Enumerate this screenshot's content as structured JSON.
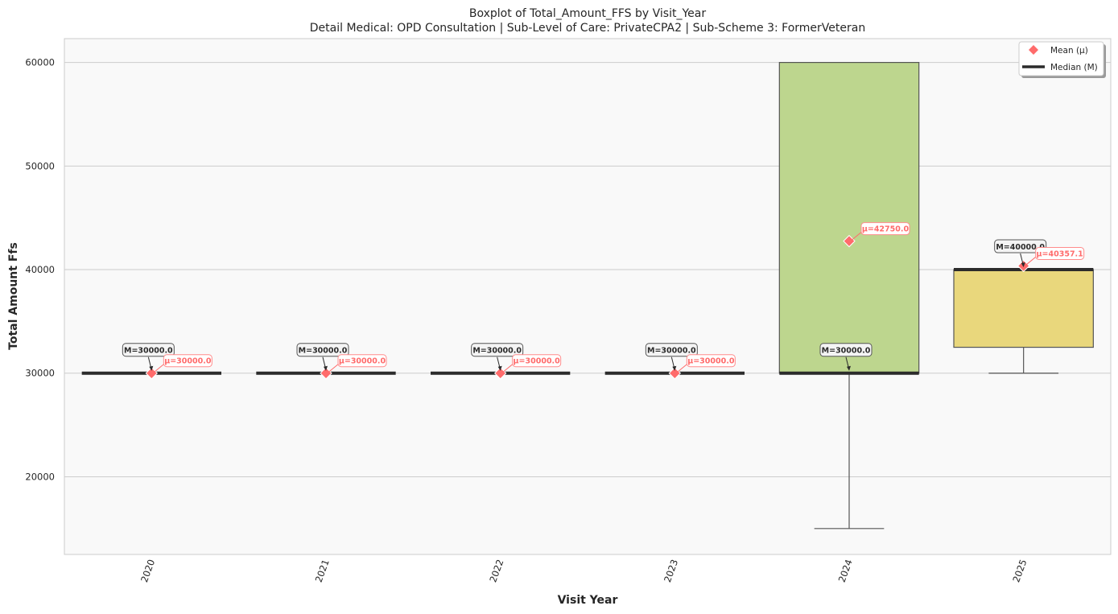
{
  "chart_data": {
    "type": "box",
    "title": "Boxplot of Total_Amount_FFS by Visit_Year",
    "subtitle": "Detail Medical: OPD Consultation | Sub-Level of Care: PrivateCPA2 | Sub-Scheme 3: FormerVeteran",
    "xlabel": "Visit Year",
    "ylabel": "Total Amount Ffs",
    "ylim": [
      12500,
      62300
    ],
    "yticks": [
      20000,
      30000,
      40000,
      50000,
      60000
    ],
    "grid": "horizontal",
    "legend_position": "upper-right",
    "legend": [
      {
        "label": "Mean (μ)",
        "marker": "diamond",
        "color": "#ff6b6b"
      },
      {
        "label": "Median (M)",
        "marker": "line",
        "color": "#2b2b2b"
      }
    ],
    "categories": [
      "2020",
      "2021",
      "2022",
      "2023",
      "2024",
      "2025"
    ],
    "boxes": [
      {
        "category": "2020",
        "q1": 30000,
        "median": 30000,
        "q3": 30000,
        "whisker_low": 30000,
        "whisker_high": 30000,
        "mean": 30000,
        "color": "#f0f0f0",
        "median_label": "M=30000.0",
        "mean_label": "μ=30000.0"
      },
      {
        "category": "2021",
        "q1": 30000,
        "median": 30000,
        "q3": 30000,
        "whisker_low": 30000,
        "whisker_high": 30000,
        "mean": 30000,
        "color": "#f0f0f0",
        "median_label": "M=30000.0",
        "mean_label": "μ=30000.0"
      },
      {
        "category": "2022",
        "q1": 30000,
        "median": 30000,
        "q3": 30000,
        "whisker_low": 30000,
        "whisker_high": 30000,
        "mean": 30000,
        "color": "#f0f0f0",
        "median_label": "M=30000.0",
        "mean_label": "μ=30000.0"
      },
      {
        "category": "2023",
        "q1": 30000,
        "median": 30000,
        "q3": 30000,
        "whisker_low": 30000,
        "whisker_high": 30000,
        "mean": 30000,
        "color": "#f0f0f0",
        "median_label": "M=30000.0",
        "mean_label": "μ=30000.0"
      },
      {
        "category": "2024",
        "q1": 30000,
        "median": 30000,
        "q3": 60000,
        "whisker_low": 15000,
        "whisker_high": 60000,
        "mean": 42750,
        "color": "#bdd68e",
        "median_label": "M=30000.0",
        "mean_label": "μ=42750.0"
      },
      {
        "category": "2025",
        "q1": 32500,
        "median": 40000,
        "q3": 40000,
        "whisker_low": 30000,
        "whisker_high": 40000,
        "mean": 40357.1,
        "color": "#e9d77c",
        "median_label": "M=40000.0",
        "mean_label": "μ=40357.1"
      }
    ]
  }
}
